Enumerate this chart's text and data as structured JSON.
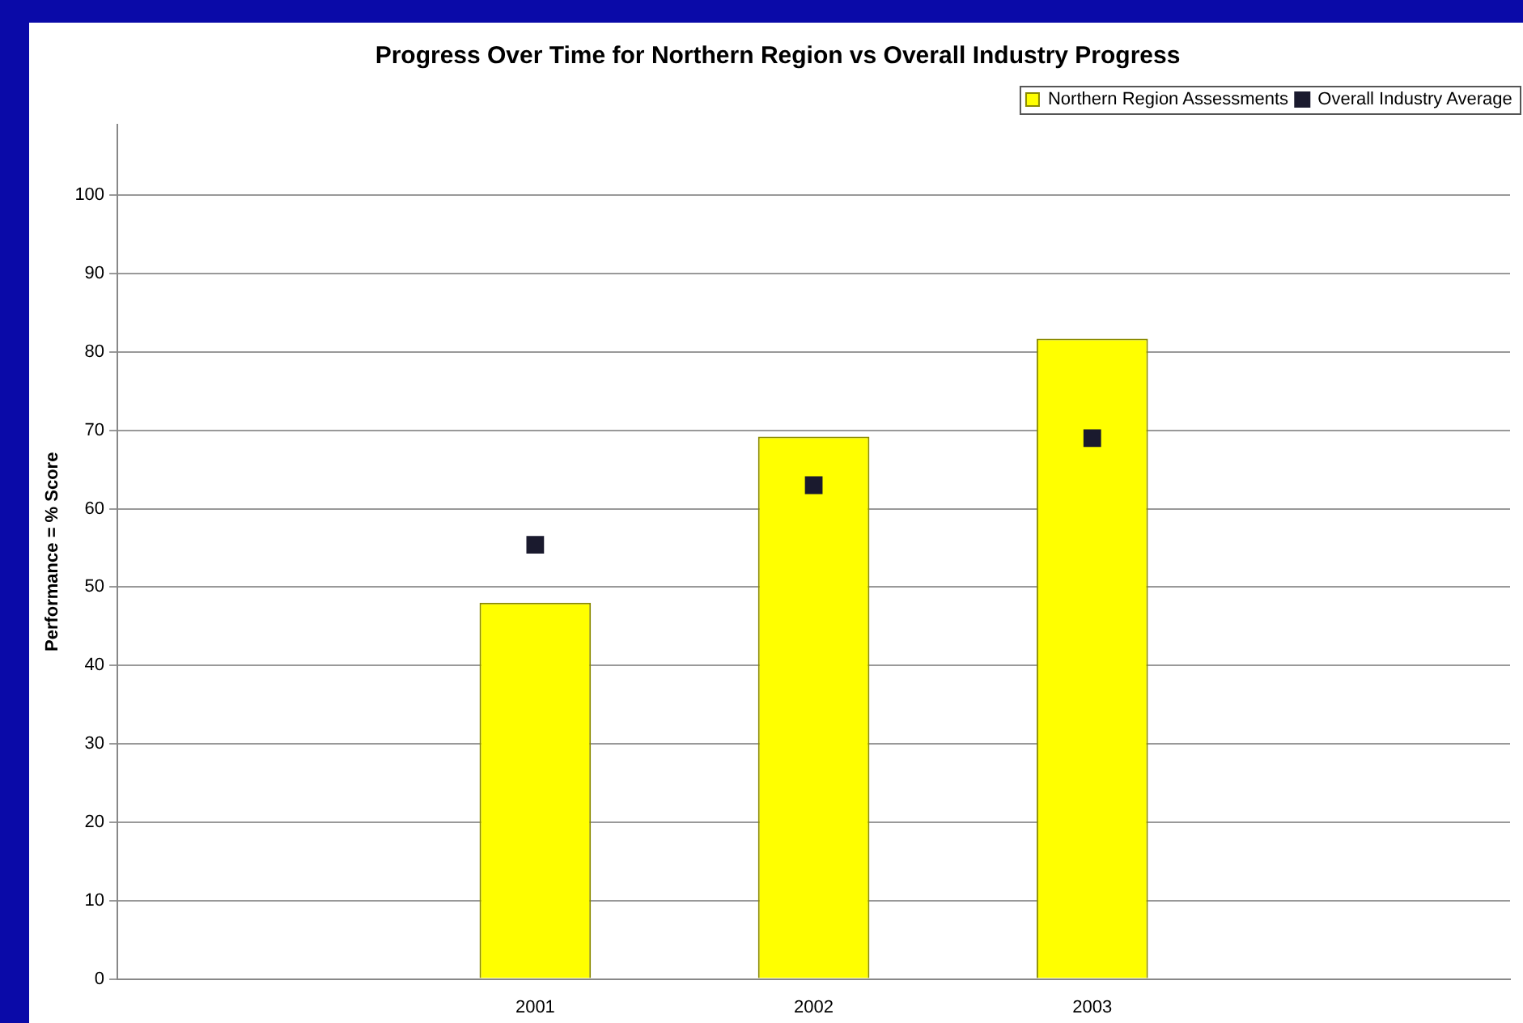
{
  "chart_data": {
    "type": "bar",
    "title": "Progress Over Time for Northern Region vs Overall Industry Progress",
    "ylabel": "Performance = % Score",
    "categories": [
      null,
      "2001",
      "2002",
      "2003",
      null
    ],
    "series": [
      {
        "name": "Northern Region Assessments",
        "color": "#ffff00",
        "values": [
          null,
          48,
          69.2,
          81.7,
          null
        ]
      },
      {
        "name": "Overall Industry Average",
        "type": "scatter",
        "marker": "square",
        "color": "#1a1a2e",
        "values": [
          null,
          55.4,
          63,
          69,
          null
        ]
      }
    ],
    "ylim": [
      0,
      109
    ],
    "yticks": [
      0,
      10,
      20,
      30,
      40,
      50,
      60,
      70,
      80,
      90,
      100
    ],
    "grid": "y",
    "legend": "top right"
  }
}
